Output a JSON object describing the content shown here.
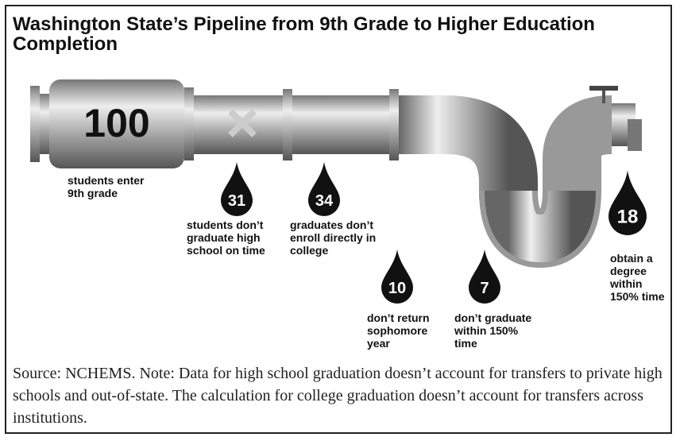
{
  "title": "Washington State’s Pipeline from 9th Grade to Higher Education Completion",
  "start": {
    "value": 100,
    "label": [
      "students enter",
      "9th grade"
    ]
  },
  "drops": [
    {
      "value": 31,
      "label": [
        "students don’t",
        "graduate high",
        "school on time"
      ]
    },
    {
      "value": 34,
      "label": [
        "graduates don’t",
        "enroll directly in",
        "college"
      ]
    },
    {
      "value": 10,
      "label": [
        "don’t return",
        "sophomore",
        "year"
      ]
    },
    {
      "value": 7,
      "label": [
        "don’t graduate",
        "within 150%",
        "time"
      ]
    },
    {
      "value": 18,
      "label": [
        "obtain a",
        "degree",
        "within",
        "150% time"
      ]
    }
  ],
  "source": "Source: NCHEMS. Note: Data for high school graduation doesn’t account for transfers to private high schools and out-of-state. The calculation for college graduation doesn’t account for transfers across institutions."
}
